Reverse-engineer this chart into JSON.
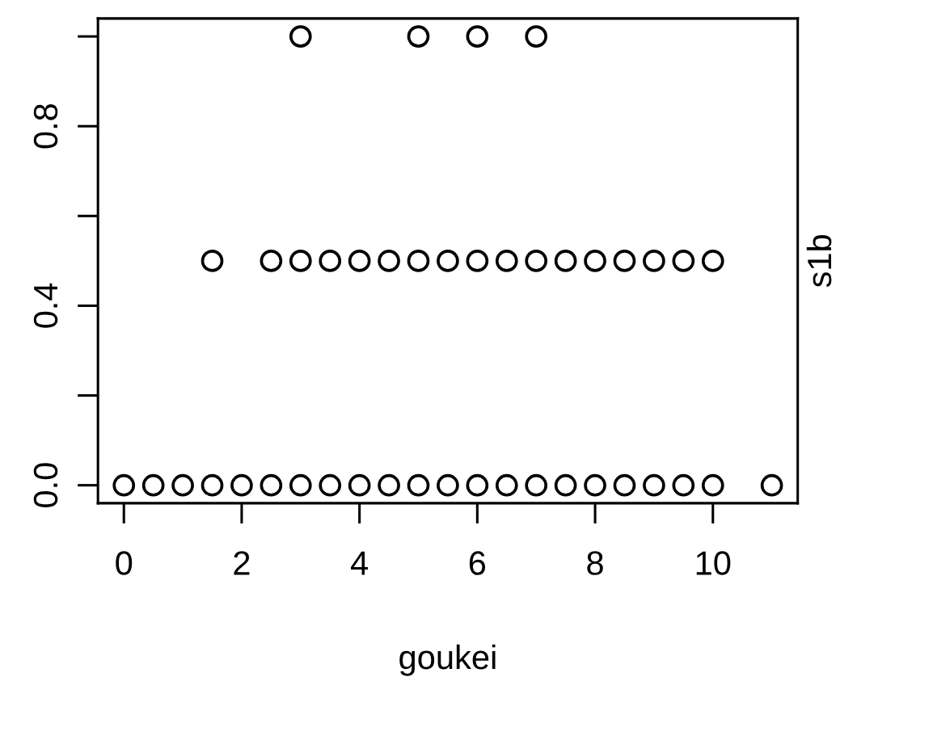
{
  "chart_data": {
    "type": "scatter",
    "xlabel": "goukei",
    "ylabel": "s1b",
    "series": [
      {
        "color": "#000000",
        "x": [
          3,
          5,
          6,
          7
        ],
        "values": [
          1,
          1,
          1,
          1
        ]
      },
      {
        "color": "#000000",
        "x": [
          1.5,
          2.5,
          3,
          3.5,
          4,
          4.5,
          5,
          5.5,
          6,
          6.5,
          7,
          7.5,
          8,
          8.5,
          9,
          9.5,
          10
        ],
        "values": [
          0.5,
          0.5,
          0.5,
          0.5,
          0.5,
          0.5,
          0.5,
          0.5,
          0.5,
          0.5,
          0.5,
          0.5,
          0.5,
          0.5,
          0.5,
          0.5,
          0.5
        ]
      },
      {
        "color": "#000000",
        "x": [
          0,
          0.5,
          1,
          1.5,
          2,
          2.5,
          3,
          3.5,
          4,
          4.5,
          5,
          5.5,
          6,
          6.5,
          7,
          7.5,
          8,
          8.5,
          9,
          9.5,
          10,
          11
        ],
        "values": [
          0,
          0,
          0,
          0,
          0,
          0,
          0,
          0,
          0,
          0,
          0,
          0,
          0,
          0,
          0,
          0,
          0,
          0,
          0,
          0,
          0,
          0
        ]
      }
    ],
    "xlim": [
      -0.44,
      11.44
    ],
    "ylim": [
      -0.04,
      1.04
    ],
    "xticks": [
      0,
      2,
      4,
      6,
      8,
      10
    ],
    "yticks": [
      {
        "value": 0,
        "label": "0.0"
      },
      {
        "value": 0.2,
        "label": null
      },
      {
        "value": 0.4,
        "label": "0.4"
      },
      {
        "value": 0.6,
        "label": null
      },
      {
        "value": 0.8,
        "label": "0.8"
      },
      {
        "value": 1.0,
        "label": null
      }
    ],
    "marker": "circle",
    "grid": false,
    "legend": false
  }
}
